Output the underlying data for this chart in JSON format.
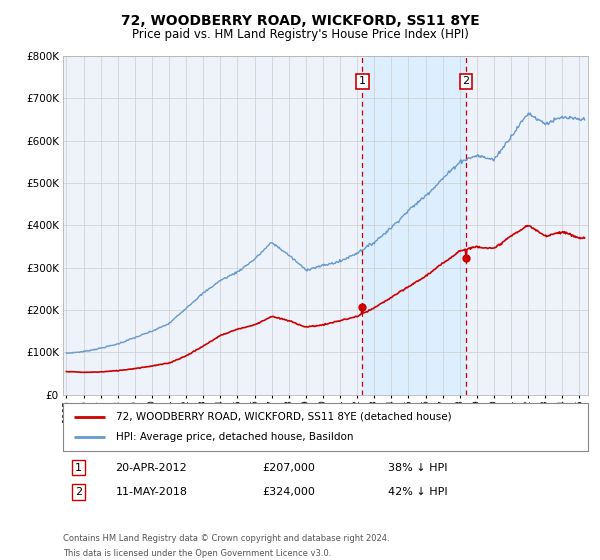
{
  "title": "72, WOODBERRY ROAD, WICKFORD, SS11 8YE",
  "subtitle": "Price paid vs. HM Land Registry's House Price Index (HPI)",
  "legend_line1": "72, WOODBERRY ROAD, WICKFORD, SS11 8YE (detached house)",
  "legend_line2": "HPI: Average price, detached house, Basildon",
  "footnote1": "Contains HM Land Registry data © Crown copyright and database right 2024.",
  "footnote2": "This data is licensed under the Open Government Licence v3.0.",
  "transaction1_date": "20-APR-2012",
  "transaction1_price": "£207,000",
  "transaction1_pct": "38% ↓ HPI",
  "transaction1_year": 2012.3,
  "transaction1_value": 207000,
  "transaction2_date": "11-MAY-2018",
  "transaction2_price": "£324,000",
  "transaction2_pct": "42% ↓ HPI",
  "transaction2_year": 2018.37,
  "transaction2_value": 324000,
  "hpi_color": "#6699cc",
  "property_color": "#cc0000",
  "marker_box_color": "#cc0000",
  "shade_color": "#ddeeff",
  "background_color": "#eef2fa",
  "grid_color": "#cccccc",
  "ylim_max": 800000,
  "xlim_start": 1994.8,
  "xlim_end": 2025.5,
  "hpi_years": [
    1995,
    1996,
    1997,
    1998,
    1999,
    2000,
    2001,
    2002,
    2003,
    2004,
    2005,
    2006,
    2007,
    2008,
    2009,
    2010,
    2011,
    2012,
    2013,
    2014,
    2015,
    2016,
    2017,
    2018,
    2019,
    2020,
    2021,
    2022,
    2023,
    2024,
    2025
  ],
  "hpi_values": [
    98000,
    102000,
    110000,
    120000,
    135000,
    150000,
    168000,
    205000,
    240000,
    270000,
    290000,
    320000,
    360000,
    330000,
    295000,
    305000,
    315000,
    335000,
    360000,
    395000,
    435000,
    470000,
    510000,
    550000,
    565000,
    555000,
    610000,
    665000,
    640000,
    655000,
    650000
  ],
  "prop_years": [
    1995,
    1996,
    1997,
    1998,
    1999,
    2000,
    2001,
    2002,
    2003,
    2004,
    2005,
    2006,
    2007,
    2008,
    2009,
    2010,
    2011,
    2012,
    2013,
    2014,
    2015,
    2016,
    2017,
    2018,
    2019,
    2020,
    2021,
    2022,
    2023,
    2024,
    2025
  ],
  "prop_values": [
    55000,
    53000,
    54000,
    57000,
    62000,
    68000,
    75000,
    92000,
    115000,
    140000,
    155000,
    165000,
    185000,
    175000,
    160000,
    165000,
    175000,
    185000,
    205000,
    230000,
    255000,
    280000,
    310000,
    340000,
    350000,
    345000,
    375000,
    400000,
    375000,
    385000,
    370000
  ]
}
